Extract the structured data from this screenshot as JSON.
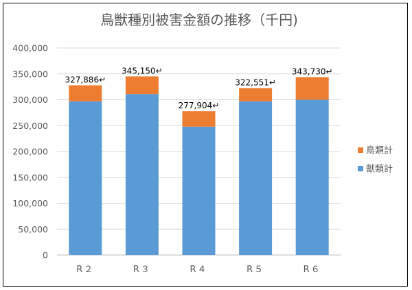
{
  "chart_data": {
    "type": "bar",
    "stacked": true,
    "title": "鳥獣種別被害金額の推移（千円)",
    "xlabel": "",
    "ylabel": "",
    "categories": [
      "R２",
      "R３",
      "R４",
      "R５",
      "R６"
    ],
    "series": [
      {
        "name": "獣類計",
        "values": [
          297000,
          311000,
          248000,
          297000,
          300000
        ],
        "color": "#5B9BD5"
      },
      {
        "name": "鳥類計",
        "values": [
          30886,
          34150,
          29904,
          25551,
          43730
        ],
        "color": "#ED7D31"
      }
    ],
    "totals": [
      327886,
      345150,
      277904,
      322551,
      343730
    ],
    "total_labels": [
      "327,886↵",
      "345,150↵",
      "277,904↵",
      "322,551↵",
      "343,730↵"
    ],
    "ylim": [
      0,
      400000
    ],
    "yticks": [
      0,
      50000,
      100000,
      150000,
      200000,
      250000,
      300000,
      350000,
      400000
    ],
    "ytick_labels": [
      "0",
      "50,000",
      "100,000",
      "150,000",
      "200,000",
      "250,000",
      "300,000",
      "350,000",
      "400,000"
    ],
    "grid": true,
    "legend_position": "right"
  }
}
